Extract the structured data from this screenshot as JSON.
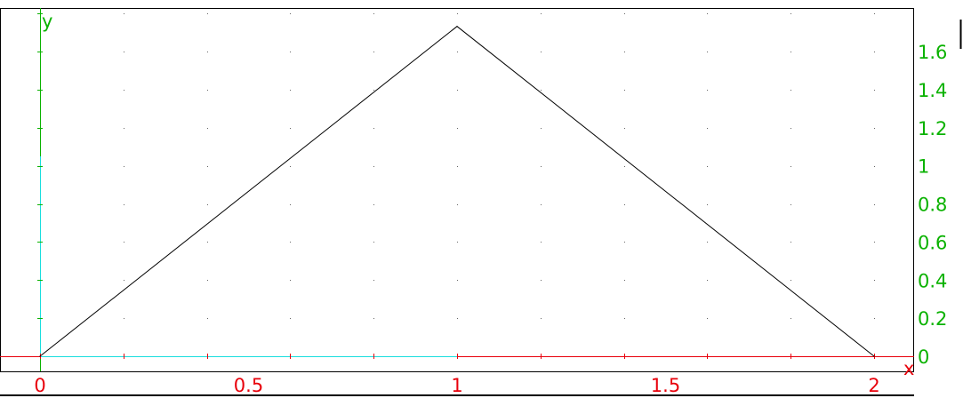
{
  "chart_data": {
    "type": "line",
    "xlabel": "x",
    "ylabel": "y",
    "xlim": [
      -0.09,
      2.09
    ],
    "ylim": [
      -0.04,
      1.84
    ],
    "x_ticks": [
      0,
      0.5,
      1,
      1.5,
      2
    ],
    "x_tick_labels": [
      "0",
      "0.5",
      "1",
      "1.5",
      "2"
    ],
    "y_ticks": [
      0,
      0.2,
      0.4,
      0.6,
      0.8,
      1,
      1.2,
      1.4,
      1.6
    ],
    "y_tick_labels": [
      "0",
      "0.2",
      "0.4",
      "0.6",
      "0.8",
      "1",
      "1.2",
      "1.4",
      "1.6"
    ],
    "grid": "dotted",
    "series": [
      {
        "x": [
          0,
          1,
          2
        ],
        "y": [
          0,
          1.732,
          0
        ]
      }
    ],
    "colors": {
      "curve": "#000000",
      "x_axis": "#e8000b",
      "y_axis": "#0ab200",
      "x_labels": "#e8000b",
      "y_labels": "#0ab200",
      "grid": "#666666",
      "highlight": "#19dede"
    }
  }
}
